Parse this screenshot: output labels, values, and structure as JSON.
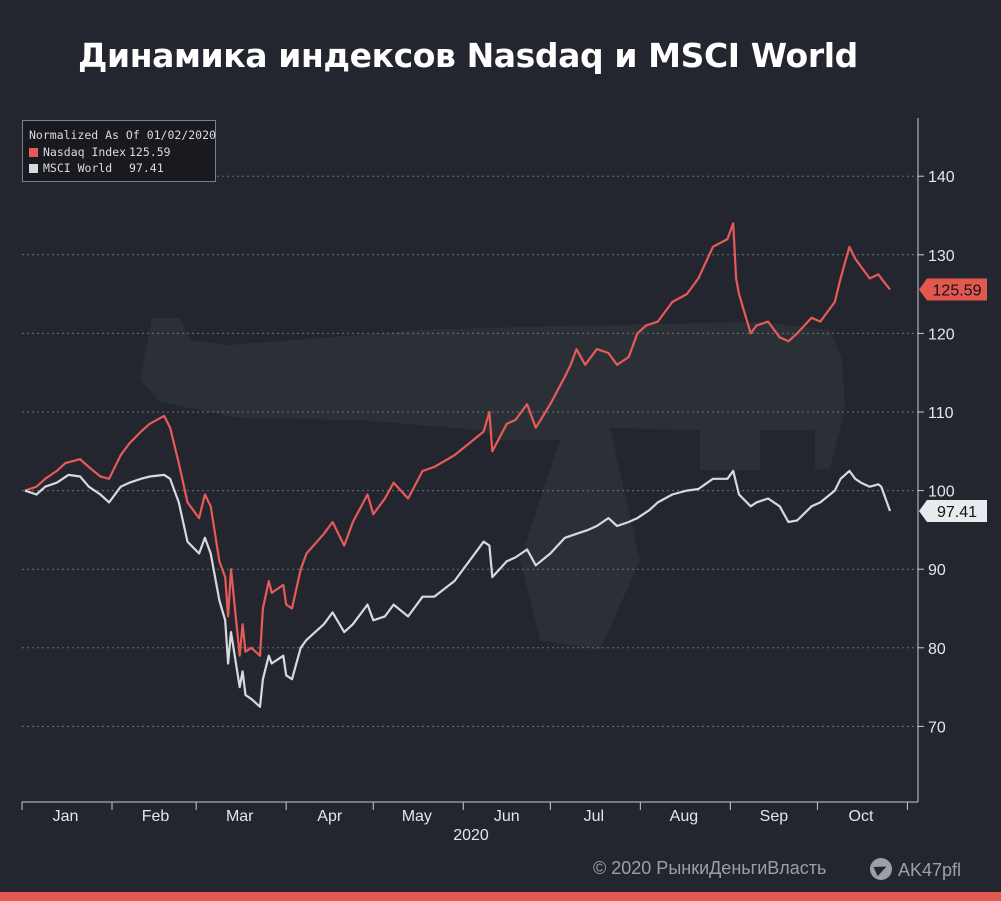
{
  "title": "Динамика индексов Nasdaq и MSCI World",
  "legend": {
    "header": "Normalized As Of 01/02/2020",
    "items": [
      {
        "name": "Nasdaq Index",
        "value": "125.59",
        "color": "#e75a5a"
      },
      {
        "name": "MSCI World",
        "value": "97.41",
        "color": "#d6d9de"
      }
    ]
  },
  "footer": {
    "copyright": "© 2020  РынкиДеньгиВласть",
    "telegram": "AK47pfl",
    "telegram_icon": "telegram-icon"
  },
  "chart_data": {
    "type": "line",
    "ylim": [
      60,
      150
    ],
    "y_ticks": [
      70,
      80,
      90,
      100,
      110,
      120,
      130,
      140
    ],
    "x_range": [
      "2020-01-01",
      "2020-10-26"
    ],
    "month_labels": [
      "Jan",
      "Feb",
      "Mar",
      "Apr",
      "May",
      "Jun",
      "Jul",
      "Aug",
      "Sep",
      "Oct"
    ],
    "year_label": "2020",
    "grid": true,
    "legend_position": "top-left",
    "series": [
      {
        "name": "Nasdaq Index",
        "color": "#e75a5a",
        "last_label": "125.59",
        "points": [
          [
            "2020-01-02",
            100
          ],
          [
            "2020-01-06",
            100.5
          ],
          [
            "2020-01-09",
            101.5
          ],
          [
            "2020-01-13",
            102.5
          ],
          [
            "2020-01-16",
            103.5
          ],
          [
            "2020-01-21",
            104
          ],
          [
            "2020-01-24",
            103
          ],
          [
            "2020-01-28",
            101.8
          ],
          [
            "2020-01-31",
            101.5
          ],
          [
            "2020-02-04",
            104.5
          ],
          [
            "2020-02-07",
            106
          ],
          [
            "2020-02-11",
            107.5
          ],
          [
            "2020-02-14",
            108.5
          ],
          [
            "2020-02-19",
            109.5
          ],
          [
            "2020-02-21",
            108
          ],
          [
            "2020-02-24",
            103.5
          ],
          [
            "2020-02-27",
            98.5
          ],
          [
            "2020-03-02",
            96.5
          ],
          [
            "2020-03-04",
            99.5
          ],
          [
            "2020-03-06",
            98
          ],
          [
            "2020-03-09",
            91
          ],
          [
            "2020-03-11",
            89
          ],
          [
            "2020-03-12",
            84
          ],
          [
            "2020-03-13",
            90
          ],
          [
            "2020-03-16",
            79
          ],
          [
            "2020-03-17",
            83
          ],
          [
            "2020-03-18",
            79.5
          ],
          [
            "2020-03-20",
            80
          ],
          [
            "2020-03-23",
            79
          ],
          [
            "2020-03-24",
            85
          ],
          [
            "2020-03-26",
            88.5
          ],
          [
            "2020-03-27",
            87
          ],
          [
            "2020-03-31",
            88
          ],
          [
            "2020-04-01",
            85.5
          ],
          [
            "2020-04-03",
            85
          ],
          [
            "2020-04-06",
            90
          ],
          [
            "2020-04-08",
            92
          ],
          [
            "2020-04-14",
            94.5
          ],
          [
            "2020-04-17",
            96
          ],
          [
            "2020-04-21",
            93
          ],
          [
            "2020-04-24",
            96
          ],
          [
            "2020-04-29",
            99.5
          ],
          [
            "2020-05-01",
            97
          ],
          [
            "2020-05-05",
            99
          ],
          [
            "2020-05-08",
            101
          ],
          [
            "2020-05-13",
            99
          ],
          [
            "2020-05-18",
            102.5
          ],
          [
            "2020-05-22",
            103
          ],
          [
            "2020-05-29",
            104.5
          ],
          [
            "2020-06-03",
            106
          ],
          [
            "2020-06-08",
            107.5
          ],
          [
            "2020-06-10",
            110
          ],
          [
            "2020-06-11",
            105
          ],
          [
            "2020-06-16",
            108.5
          ],
          [
            "2020-06-19",
            109
          ],
          [
            "2020-06-23",
            111
          ],
          [
            "2020-06-26",
            108
          ],
          [
            "2020-07-01",
            111
          ],
          [
            "2020-07-06",
            114.5
          ],
          [
            "2020-07-08",
            116
          ],
          [
            "2020-07-10",
            118
          ],
          [
            "2020-07-13",
            116
          ],
          [
            "2020-07-17",
            118
          ],
          [
            "2020-07-21",
            117.5
          ],
          [
            "2020-07-24",
            116
          ],
          [
            "2020-07-28",
            117
          ],
          [
            "2020-07-31",
            120
          ],
          [
            "2020-08-03",
            121
          ],
          [
            "2020-08-07",
            121.5
          ],
          [
            "2020-08-12",
            124
          ],
          [
            "2020-08-17",
            125
          ],
          [
            "2020-08-21",
            127
          ],
          [
            "2020-08-26",
            131
          ],
          [
            "2020-08-31",
            132
          ],
          [
            "2020-09-02",
            134
          ],
          [
            "2020-09-03",
            127
          ],
          [
            "2020-09-04",
            125
          ],
          [
            "2020-09-08",
            120
          ],
          [
            "2020-09-10",
            121
          ],
          [
            "2020-09-14",
            121.5
          ],
          [
            "2020-09-18",
            119.5
          ],
          [
            "2020-09-21",
            119
          ],
          [
            "2020-09-24",
            120
          ],
          [
            "2020-09-29",
            122
          ],
          [
            "2020-10-02",
            121.5
          ],
          [
            "2020-10-07",
            124
          ],
          [
            "2020-10-09",
            127
          ],
          [
            "2020-10-12",
            131
          ],
          [
            "2020-10-14",
            129.5
          ],
          [
            "2020-10-16",
            128.5
          ],
          [
            "2020-10-19",
            127
          ],
          [
            "2020-10-22",
            127.5
          ],
          [
            "2020-10-23",
            127
          ],
          [
            "2020-10-26",
            125.59
          ]
        ]
      },
      {
        "name": "MSCI World",
        "color": "#d6d9de",
        "last_label": "97.41",
        "points": [
          [
            "2020-01-02",
            100
          ],
          [
            "2020-01-06",
            99.5
          ],
          [
            "2020-01-09",
            100.5
          ],
          [
            "2020-01-13",
            101
          ],
          [
            "2020-01-17",
            102
          ],
          [
            "2020-01-21",
            101.8
          ],
          [
            "2020-01-24",
            100.5
          ],
          [
            "2020-01-28",
            99.5
          ],
          [
            "2020-01-31",
            98.5
          ],
          [
            "2020-02-04",
            100.5
          ],
          [
            "2020-02-07",
            101
          ],
          [
            "2020-02-11",
            101.5
          ],
          [
            "2020-02-14",
            101.8
          ],
          [
            "2020-02-19",
            102
          ],
          [
            "2020-02-21",
            101.5
          ],
          [
            "2020-02-24",
            98.5
          ],
          [
            "2020-02-27",
            93.5
          ],
          [
            "2020-03-02",
            92
          ],
          [
            "2020-03-04",
            94
          ],
          [
            "2020-03-06",
            92
          ],
          [
            "2020-03-09",
            86
          ],
          [
            "2020-03-11",
            83.5
          ],
          [
            "2020-03-12",
            78
          ],
          [
            "2020-03-13",
            82
          ],
          [
            "2020-03-16",
            75
          ],
          [
            "2020-03-17",
            77
          ],
          [
            "2020-03-18",
            74
          ],
          [
            "2020-03-20",
            73.5
          ],
          [
            "2020-03-23",
            72.5
          ],
          [
            "2020-03-24",
            76
          ],
          [
            "2020-03-26",
            79
          ],
          [
            "2020-03-27",
            78
          ],
          [
            "2020-03-31",
            79
          ],
          [
            "2020-04-01",
            76.5
          ],
          [
            "2020-04-03",
            76
          ],
          [
            "2020-04-06",
            80
          ],
          [
            "2020-04-08",
            81
          ],
          [
            "2020-04-14",
            83
          ],
          [
            "2020-04-17",
            84.5
          ],
          [
            "2020-04-21",
            82
          ],
          [
            "2020-04-24",
            83
          ],
          [
            "2020-04-29",
            85.5
          ],
          [
            "2020-05-01",
            83.5
          ],
          [
            "2020-05-05",
            84
          ],
          [
            "2020-05-08",
            85.5
          ],
          [
            "2020-05-13",
            84
          ],
          [
            "2020-05-18",
            86.5
          ],
          [
            "2020-05-22",
            86.5
          ],
          [
            "2020-05-29",
            88.5
          ],
          [
            "2020-06-03",
            91
          ],
          [
            "2020-06-08",
            93.5
          ],
          [
            "2020-06-10",
            93
          ],
          [
            "2020-06-11",
            89
          ],
          [
            "2020-06-16",
            91
          ],
          [
            "2020-06-19",
            91.5
          ],
          [
            "2020-06-23",
            92.5
          ],
          [
            "2020-06-26",
            90.5
          ],
          [
            "2020-07-01",
            92
          ],
          [
            "2020-07-06",
            94
          ],
          [
            "2020-07-10",
            94.5
          ],
          [
            "2020-07-14",
            95
          ],
          [
            "2020-07-17",
            95.5
          ],
          [
            "2020-07-21",
            96.5
          ],
          [
            "2020-07-24",
            95.5
          ],
          [
            "2020-07-28",
            96
          ],
          [
            "2020-07-31",
            96.5
          ],
          [
            "2020-08-04",
            97.5
          ],
          [
            "2020-08-07",
            98.5
          ],
          [
            "2020-08-12",
            99.5
          ],
          [
            "2020-08-17",
            100
          ],
          [
            "2020-08-21",
            100.2
          ],
          [
            "2020-08-26",
            101.5
          ],
          [
            "2020-08-31",
            101.5
          ],
          [
            "2020-09-02",
            102.5
          ],
          [
            "2020-09-04",
            99.5
          ],
          [
            "2020-09-08",
            98
          ],
          [
            "2020-09-10",
            98.5
          ],
          [
            "2020-09-14",
            99
          ],
          [
            "2020-09-18",
            98
          ],
          [
            "2020-09-21",
            96
          ],
          [
            "2020-09-24",
            96.2
          ],
          [
            "2020-09-29",
            98
          ],
          [
            "2020-10-02",
            98.5
          ],
          [
            "2020-10-07",
            100
          ],
          [
            "2020-10-09",
            101.5
          ],
          [
            "2020-10-12",
            102.5
          ],
          [
            "2020-10-14",
            101.5
          ],
          [
            "2020-10-16",
            101
          ],
          [
            "2020-10-19",
            100.5
          ],
          [
            "2020-10-22",
            100.8
          ],
          [
            "2020-10-23",
            100.5
          ],
          [
            "2020-10-26",
            97.41
          ]
        ]
      }
    ]
  }
}
